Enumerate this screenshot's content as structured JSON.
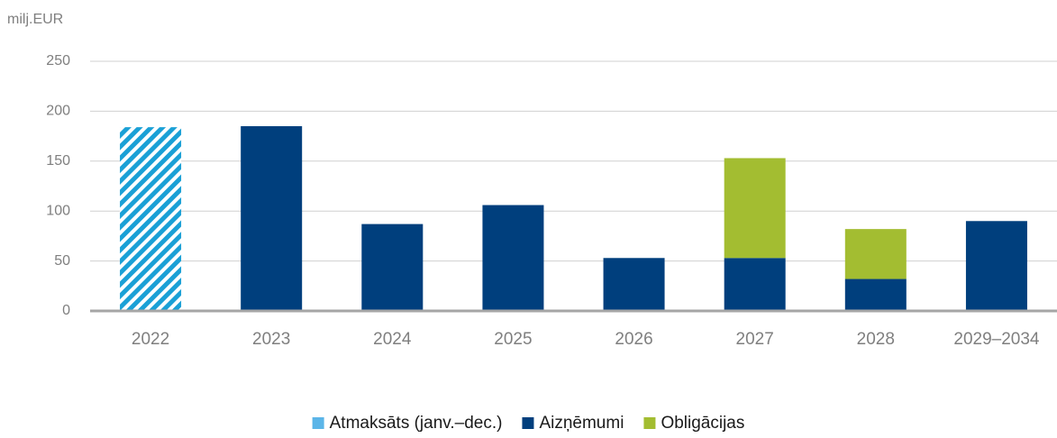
{
  "chart_data": {
    "type": "bar",
    "stacked": true,
    "y_label": "milj.EUR",
    "categories": [
      "2022",
      "2023",
      "2024",
      "2025",
      "2026",
      "2027",
      "2028",
      "2029–2034"
    ],
    "series": [
      {
        "name": "Atmaksāts (janv.–dec.)",
        "color": "#5bb5e8",
        "pattern": "hatch",
        "values": [
          184,
          null,
          null,
          null,
          null,
          null,
          null,
          null
        ]
      },
      {
        "name": "Aizņēmumi",
        "color": "#003f7d",
        "values": [
          null,
          185,
          87,
          106,
          53,
          53,
          32,
          90
        ]
      },
      {
        "name": "Obligācijas",
        "color": "#a3bd31",
        "values": [
          null,
          null,
          null,
          null,
          null,
          100,
          50,
          null
        ]
      }
    ],
    "ylim": [
      0,
      250
    ],
    "yticks": [
      0,
      50,
      100,
      150,
      200,
      250
    ],
    "grid": true,
    "legend": "bottom"
  }
}
